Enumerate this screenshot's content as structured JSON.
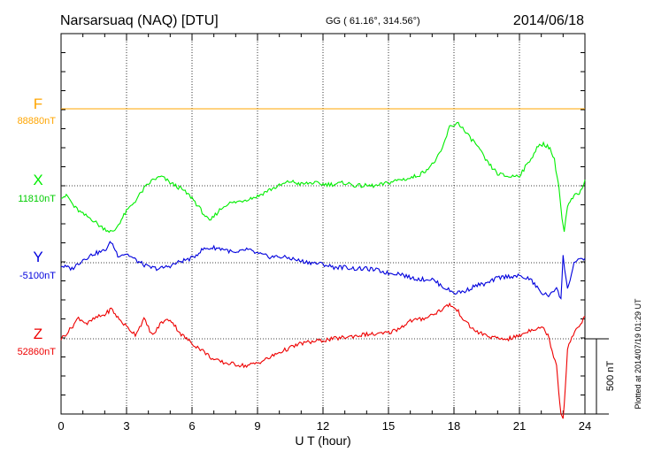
{
  "chart_data": {
    "type": "line",
    "title": "Narsarsuaq (NAQ)  [DTU]",
    "coordinates": "GG ( 61.16°, 314.56°)",
    "date": "2014/06/18",
    "xlabel": "U T (hour)",
    "xlim": [
      0,
      24
    ],
    "x_ticks": [
      "0",
      "3",
      "6",
      "9",
      "12",
      "15",
      "18",
      "21",
      "24"
    ],
    "grid": true,
    "scale_label": "500 nT",
    "scale_nT": 500,
    "plotted_note": "Plotted at 2014/07/19 01:29 UT",
    "series": [
      {
        "name": "F",
        "baseline_label": "88880nT",
        "baseline_nT": 88880,
        "color": "#ffa500",
        "x": [
          0,
          6,
          12,
          18,
          24
        ],
        "values": [
          0,
          0,
          0,
          0,
          0
        ]
      },
      {
        "name": "X",
        "baseline_label": "11810nT",
        "baseline_nT": 11810,
        "color": "#00ee00",
        "x": [
          0,
          0.3,
          0.6,
          1.0,
          1.4,
          1.8,
          2.2,
          2.4,
          2.7,
          3.0,
          3.4,
          3.8,
          4.2,
          4.6,
          5.0,
          5.5,
          6.0,
          6.4,
          6.8,
          7.2,
          7.6,
          8.0,
          8.5,
          9.0,
          9.5,
          10.0,
          10.5,
          11.0,
          11.5,
          12.0,
          12.5,
          13.0,
          13.5,
          14.0,
          14.5,
          15.0,
          15.5,
          16.0,
          16.5,
          17.0,
          17.4,
          17.8,
          18.2,
          18.6,
          19.0,
          19.5,
          20.0,
          20.5,
          21.0,
          21.4,
          21.8,
          22.1,
          22.4,
          22.6,
          22.8,
          22.95,
          23.05,
          23.2,
          23.5,
          23.8,
          24.0
        ],
        "values": [
          -70,
          -70,
          -140,
          -190,
          -220,
          -270,
          -300,
          -310,
          -240,
          -170,
          -100,
          -20,
          40,
          60,
          20,
          -20,
          -80,
          -160,
          -240,
          -170,
          -120,
          -110,
          -90,
          -70,
          -30,
          0,
          30,
          10,
          20,
          10,
          10,
          20,
          0,
          0,
          0,
          20,
          40,
          50,
          80,
          140,
          220,
          390,
          420,
          340,
          280,
          160,
          80,
          60,
          70,
          150,
          250,
          280,
          250,
          170,
          0,
          -220,
          -310,
          -140,
          -70,
          -40,
          40
        ]
      },
      {
        "name": "Y",
        "baseline_label": "-5100nT",
        "baseline_nT": -5100,
        "color": "#0000dd",
        "x": [
          0,
          0.5,
          1.0,
          1.5,
          2.0,
          2.3,
          2.6,
          3.0,
          3.5,
          4.0,
          4.5,
          5.0,
          5.5,
          6.0,
          6.5,
          7.0,
          7.5,
          8.0,
          8.5,
          9.0,
          9.5,
          10.0,
          10.5,
          11.0,
          11.5,
          12.0,
          12.5,
          13.0,
          13.5,
          14.0,
          14.5,
          15.0,
          15.5,
          16.0,
          16.5,
          17.0,
          17.5,
          18.0,
          18.5,
          19.0,
          19.5,
          20.0,
          20.5,
          21.0,
          21.5,
          22.0,
          22.4,
          22.7,
          22.9,
          23.0,
          23.2,
          23.5,
          24.0
        ],
        "values": [
          -20,
          -40,
          20,
          60,
          80,
          140,
          50,
          60,
          10,
          -30,
          -40,
          -20,
          10,
          30,
          90,
          100,
          90,
          60,
          90,
          60,
          40,
          40,
          30,
          10,
          0,
          -10,
          -30,
          -30,
          -40,
          -40,
          -50,
          -70,
          -70,
          -100,
          -110,
          -110,
          -160,
          -200,
          -190,
          -150,
          -140,
          -100,
          -90,
          -90,
          -110,
          -200,
          -220,
          -160,
          -240,
          40,
          -180,
          0,
          30
        ]
      },
      {
        "name": "Z",
        "baseline_label": "52860nT",
        "baseline_nT": 52860,
        "color": "#ee0000",
        "x": [
          0,
          0.4,
          0.8,
          1.2,
          1.6,
          2.0,
          2.3,
          2.6,
          3.0,
          3.4,
          3.8,
          4.2,
          4.6,
          5.0,
          5.5,
          6.0,
          6.5,
          7.0,
          7.5,
          8.0,
          8.5,
          9.0,
          9.5,
          10.0,
          10.5,
          11.0,
          11.5,
          12.0,
          12.5,
          13.0,
          13.5,
          14.0,
          14.5,
          15.0,
          15.5,
          16.0,
          16.5,
          17.0,
          17.5,
          17.8,
          18.2,
          18.6,
          19.0,
          19.5,
          20.0,
          20.5,
          21.0,
          21.5,
          22.0,
          22.3,
          22.5,
          22.7,
          22.8,
          22.9,
          23.0,
          23.1,
          23.2,
          23.4,
          23.6,
          23.8,
          24.0
        ],
        "values": [
          0,
          60,
          140,
          100,
          140,
          160,
          200,
          140,
          80,
          30,
          130,
          20,
          110,
          130,
          30,
          -30,
          -80,
          -140,
          -160,
          -170,
          -180,
          -160,
          -130,
          -90,
          -60,
          -30,
          -20,
          -10,
          0,
          10,
          20,
          30,
          30,
          40,
          70,
          120,
          130,
          160,
          200,
          230,
          180,
          100,
          50,
          20,
          0,
          0,
          20,
          60,
          80,
          30,
          -80,
          -170,
          -350,
          -500,
          -520,
          -330,
          -80,
          20,
          60,
          90,
          150
        ]
      }
    ]
  }
}
